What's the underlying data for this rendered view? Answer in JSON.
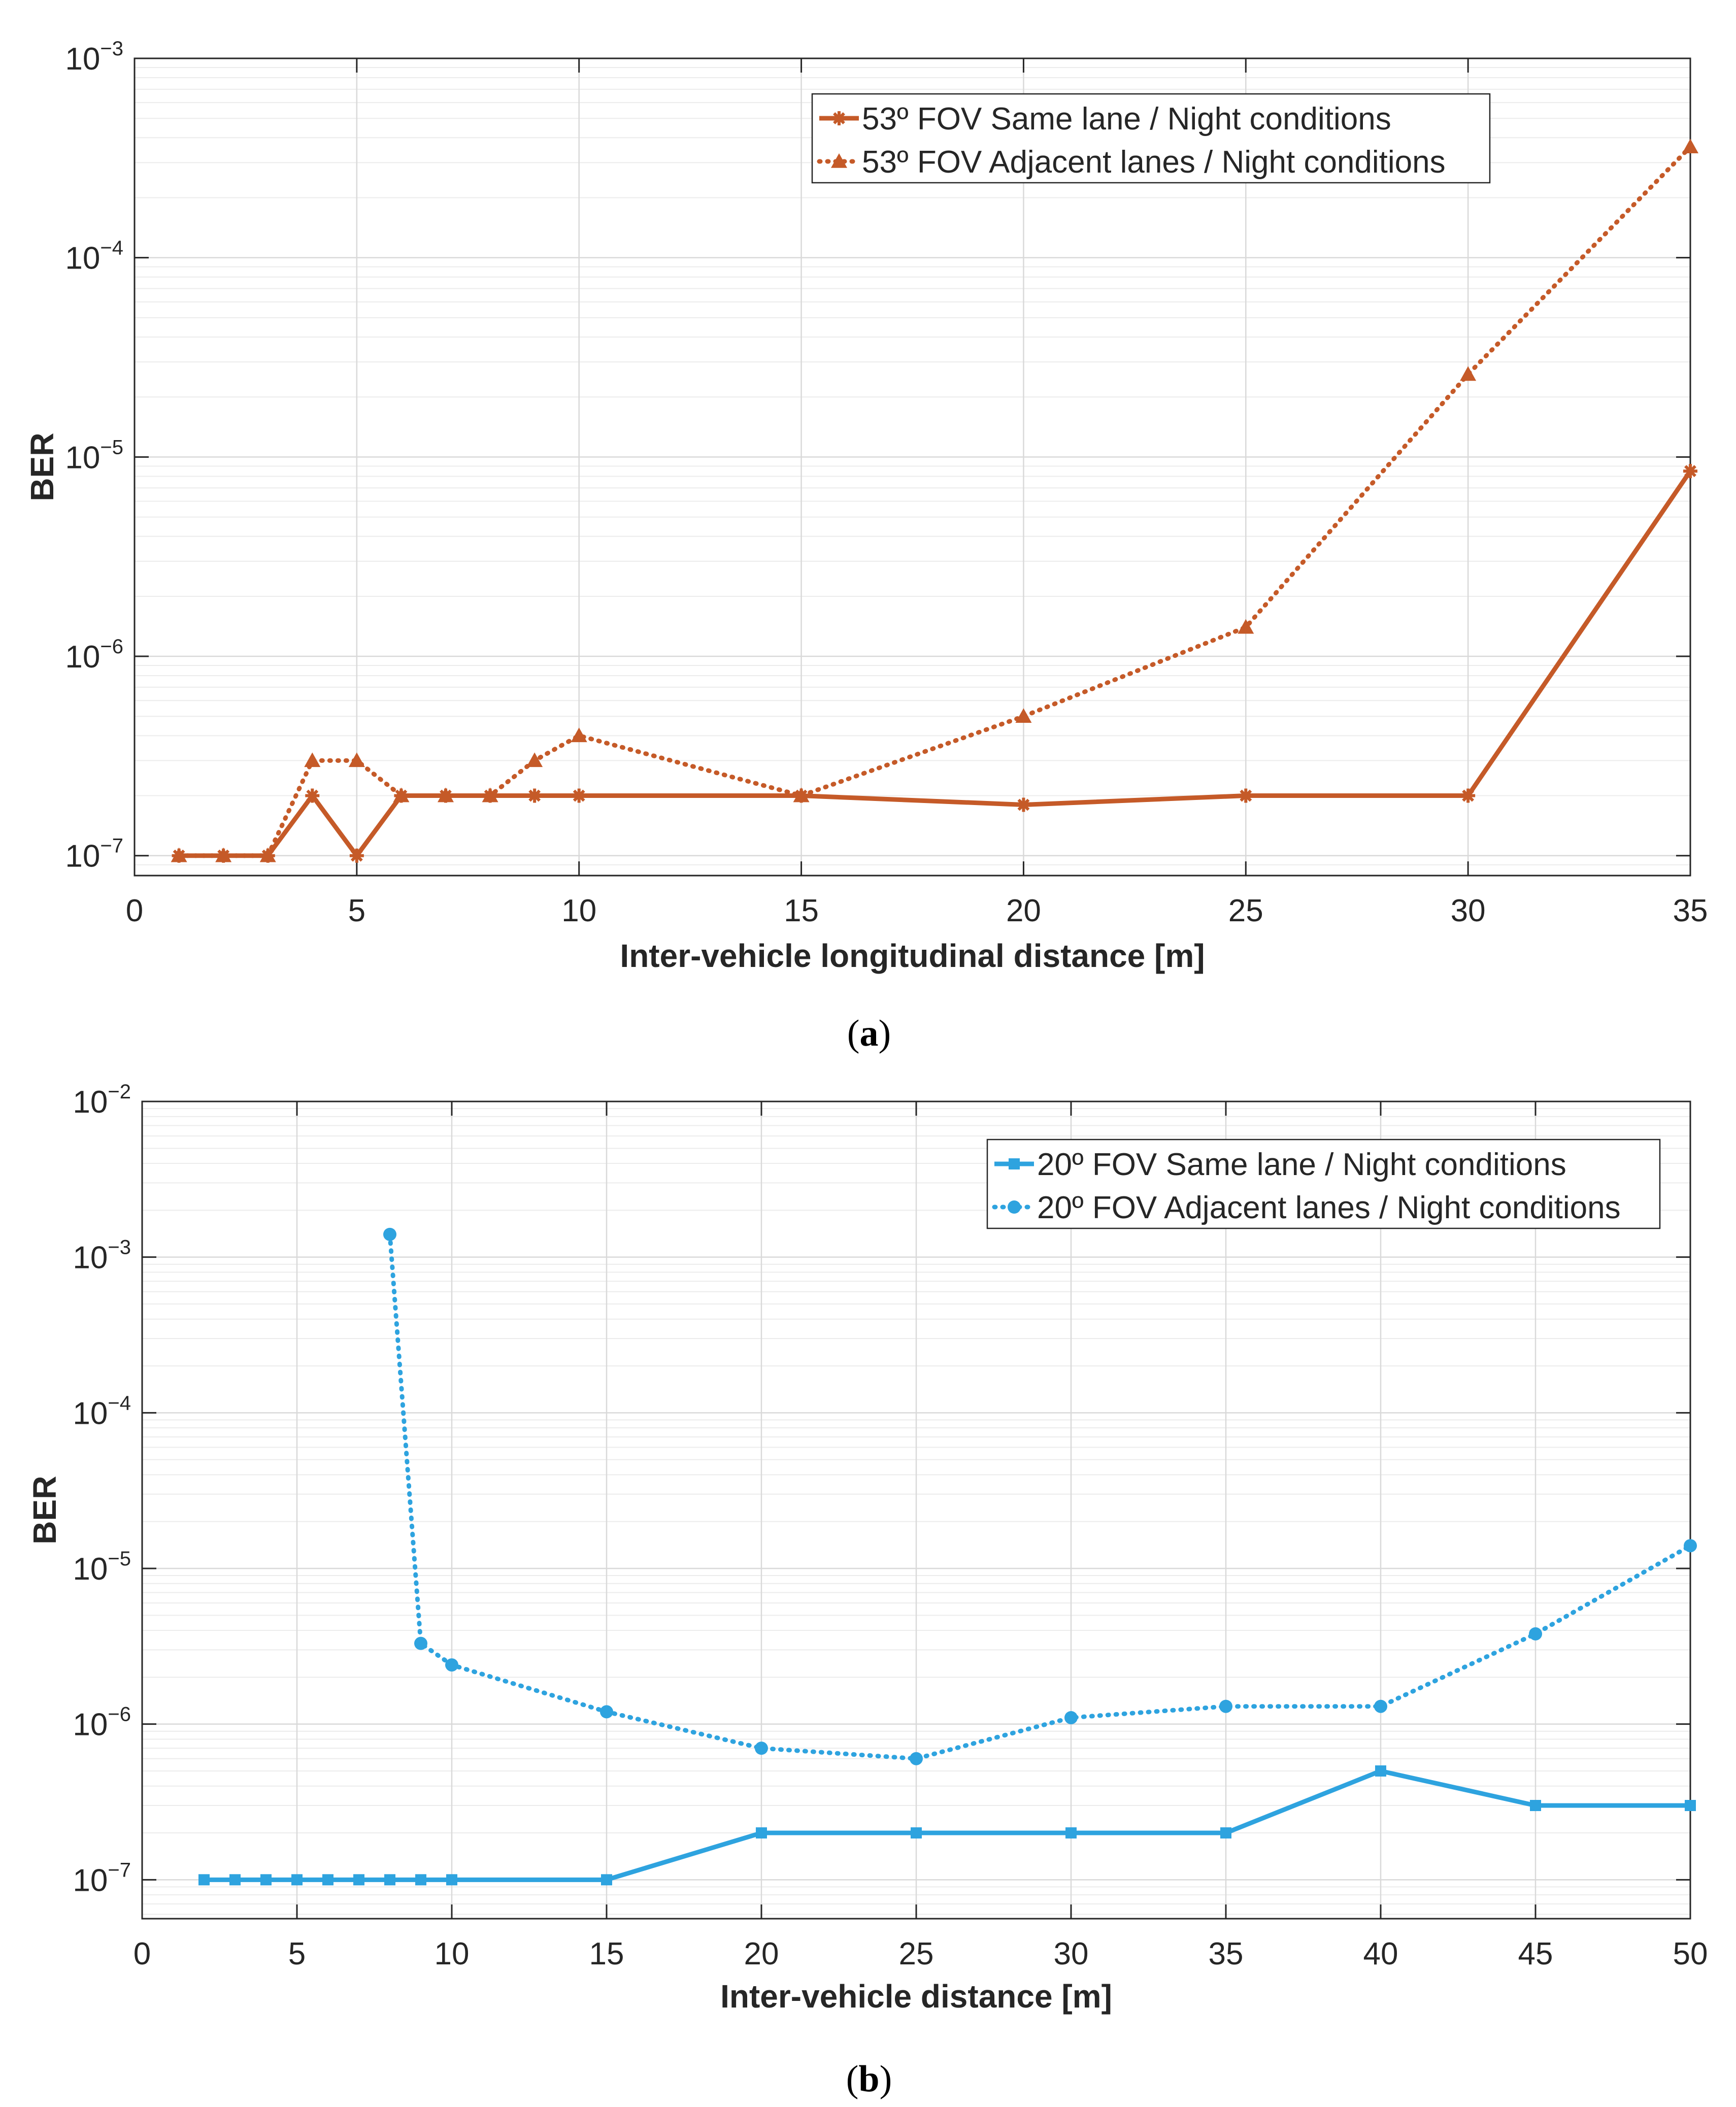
{
  "chart_data": [
    {
      "type": "line",
      "panel_label": "a",
      "title": "",
      "xlabel": "Inter-vehicle longitudinal distance [m]",
      "ylabel": "BER",
      "yscale": "log",
      "xlim": [
        0,
        35
      ],
      "ylim_exp": [
        -7.1,
        -3
      ],
      "x_ticks": [
        0,
        5,
        10,
        15,
        20,
        25,
        30,
        35
      ],
      "y_tick_exponents": [
        -7,
        -6,
        -5,
        -4,
        -3
      ],
      "y_tick_base": "10",
      "grid": true,
      "legend_position": "top-right",
      "colors": {
        "series": "#c55a28"
      },
      "series": [
        {
          "name": "53º FOV Same lane / Night conditions",
          "style": "solid",
          "marker": "star",
          "x": [
            1,
            2,
            3,
            4,
            5,
            6,
            7,
            8,
            9,
            10,
            15,
            20,
            25,
            30,
            35
          ],
          "y": [
            1e-07,
            1e-07,
            1e-07,
            2e-07,
            1e-07,
            2e-07,
            2e-07,
            2e-07,
            2e-07,
            2e-07,
            2e-07,
            1.8e-07,
            2e-07,
            2e-07,
            8.5e-06
          ]
        },
        {
          "name": "53º FOV Adjacent lanes / Night conditions",
          "style": "dotted",
          "marker": "triangle",
          "x": [
            1,
            2,
            3,
            4,
            5,
            6,
            7,
            8,
            9,
            10,
            15,
            20,
            25,
            30,
            35
          ],
          "y": [
            1e-07,
            1e-07,
            1e-07,
            3e-07,
            3e-07,
            2e-07,
            2e-07,
            2e-07,
            3e-07,
            4e-07,
            2e-07,
            5e-07,
            1.4e-06,
            2.6e-05,
            0.00036
          ]
        }
      ]
    },
    {
      "type": "line",
      "panel_label": "b",
      "title": "",
      "xlabel": "Inter-vehicle distance [m]",
      "ylabel": "BER",
      "yscale": "log",
      "xlim": [
        0,
        50
      ],
      "ylim_exp": [
        -7.25,
        -2
      ],
      "x_ticks": [
        0,
        5,
        10,
        15,
        20,
        25,
        30,
        35,
        40,
        45,
        50
      ],
      "y_tick_exponents": [
        -7,
        -6,
        -5,
        -4,
        -3,
        -2
      ],
      "y_tick_base": "10",
      "grid": true,
      "legend_position": "top-right",
      "colors": {
        "series": "#2ea3df"
      },
      "series": [
        {
          "name": "20º FOV Same lane / Night conditions",
          "style": "solid",
          "marker": "square",
          "x": [
            2,
            3,
            4,
            5,
            6,
            7,
            8,
            9,
            10,
            15,
            20,
            25,
            30,
            35,
            40,
            45,
            50
          ],
          "y": [
            1e-07,
            1e-07,
            1e-07,
            1e-07,
            1e-07,
            1e-07,
            1e-07,
            1e-07,
            1e-07,
            1e-07,
            2e-07,
            2e-07,
            2e-07,
            2e-07,
            5e-07,
            3e-07,
            3e-07
          ]
        },
        {
          "name": "20º FOV Adjacent lanes / Night conditions",
          "style": "dotted",
          "marker": "circle",
          "x": [
            8,
            9,
            10,
            15,
            20,
            25,
            30,
            35,
            40,
            45,
            50
          ],
          "y": [
            0.0014,
            3.3e-06,
            2.4e-06,
            1.2e-06,
            7e-07,
            6e-07,
            1.1e-06,
            1.3e-06,
            1.3e-06,
            3.8e-06,
            1.4e-05
          ]
        }
      ]
    }
  ]
}
